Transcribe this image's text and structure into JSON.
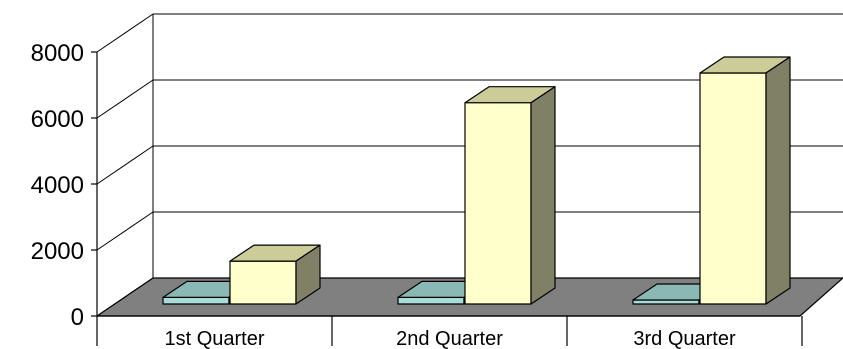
{
  "chart_data": {
    "type": "bar",
    "categories": [
      "1st Quarter",
      "2nd Quarter",
      "3rd Quarter"
    ],
    "series": [
      {
        "values": [
          200,
          200,
          50
        ]
      },
      {
        "values": [
          1300,
          6100,
          7000
        ]
      }
    ],
    "ylim": [
      0,
      8000
    ],
    "yticks": [
      "0",
      "2000",
      "4000",
      "6000",
      "8000"
    ],
    "grid": true,
    "legend": "none",
    "colors": {
      "series0_front": "#a8dcd8",
      "series0_top": "#8ab8b4",
      "series0_side": "#6f9a97",
      "series1_front": "#ffffcc",
      "series1_top": "#cccc99",
      "series1_side": "#808066",
      "floor": "#808080",
      "grid": "#000000"
    }
  }
}
